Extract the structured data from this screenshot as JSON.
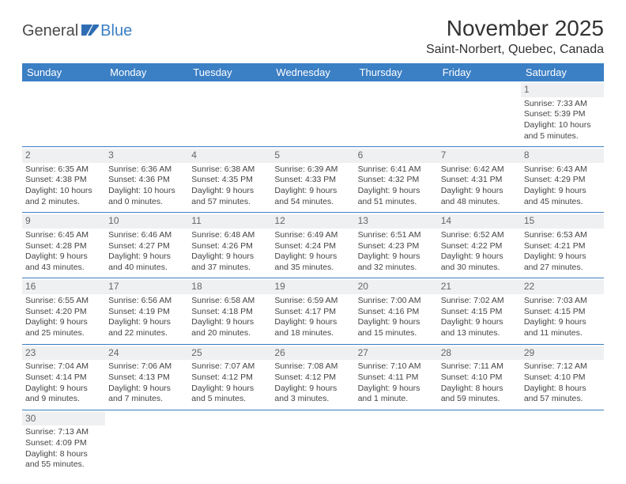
{
  "logo": {
    "text1": "General",
    "text2": "Blue"
  },
  "title": "November 2025",
  "location": "Saint-Norbert, Quebec, Canada",
  "colors": {
    "header_bg": "#3b7fc4",
    "header_text": "#ffffff",
    "daynum_bg": "#eef0f2",
    "row_border": "#3b7fc4",
    "body_text": "#444444"
  },
  "day_headers": [
    "Sunday",
    "Monday",
    "Tuesday",
    "Wednesday",
    "Thursday",
    "Friday",
    "Saturday"
  ],
  "weeks": [
    [
      {
        "n": "",
        "sunrise": "",
        "sunset": "",
        "daylight": ""
      },
      {
        "n": "",
        "sunrise": "",
        "sunset": "",
        "daylight": ""
      },
      {
        "n": "",
        "sunrise": "",
        "sunset": "",
        "daylight": ""
      },
      {
        "n": "",
        "sunrise": "",
        "sunset": "",
        "daylight": ""
      },
      {
        "n": "",
        "sunrise": "",
        "sunset": "",
        "daylight": ""
      },
      {
        "n": "",
        "sunrise": "",
        "sunset": "",
        "daylight": ""
      },
      {
        "n": "1",
        "sunrise": "Sunrise: 7:33 AM",
        "sunset": "Sunset: 5:39 PM",
        "daylight": "Daylight: 10 hours and 5 minutes."
      }
    ],
    [
      {
        "n": "2",
        "sunrise": "Sunrise: 6:35 AM",
        "sunset": "Sunset: 4:38 PM",
        "daylight": "Daylight: 10 hours and 2 minutes."
      },
      {
        "n": "3",
        "sunrise": "Sunrise: 6:36 AM",
        "sunset": "Sunset: 4:36 PM",
        "daylight": "Daylight: 10 hours and 0 minutes."
      },
      {
        "n": "4",
        "sunrise": "Sunrise: 6:38 AM",
        "sunset": "Sunset: 4:35 PM",
        "daylight": "Daylight: 9 hours and 57 minutes."
      },
      {
        "n": "5",
        "sunrise": "Sunrise: 6:39 AM",
        "sunset": "Sunset: 4:33 PM",
        "daylight": "Daylight: 9 hours and 54 minutes."
      },
      {
        "n": "6",
        "sunrise": "Sunrise: 6:41 AM",
        "sunset": "Sunset: 4:32 PM",
        "daylight": "Daylight: 9 hours and 51 minutes."
      },
      {
        "n": "7",
        "sunrise": "Sunrise: 6:42 AM",
        "sunset": "Sunset: 4:31 PM",
        "daylight": "Daylight: 9 hours and 48 minutes."
      },
      {
        "n": "8",
        "sunrise": "Sunrise: 6:43 AM",
        "sunset": "Sunset: 4:29 PM",
        "daylight": "Daylight: 9 hours and 45 minutes."
      }
    ],
    [
      {
        "n": "9",
        "sunrise": "Sunrise: 6:45 AM",
        "sunset": "Sunset: 4:28 PM",
        "daylight": "Daylight: 9 hours and 43 minutes."
      },
      {
        "n": "10",
        "sunrise": "Sunrise: 6:46 AM",
        "sunset": "Sunset: 4:27 PM",
        "daylight": "Daylight: 9 hours and 40 minutes."
      },
      {
        "n": "11",
        "sunrise": "Sunrise: 6:48 AM",
        "sunset": "Sunset: 4:26 PM",
        "daylight": "Daylight: 9 hours and 37 minutes."
      },
      {
        "n": "12",
        "sunrise": "Sunrise: 6:49 AM",
        "sunset": "Sunset: 4:24 PM",
        "daylight": "Daylight: 9 hours and 35 minutes."
      },
      {
        "n": "13",
        "sunrise": "Sunrise: 6:51 AM",
        "sunset": "Sunset: 4:23 PM",
        "daylight": "Daylight: 9 hours and 32 minutes."
      },
      {
        "n": "14",
        "sunrise": "Sunrise: 6:52 AM",
        "sunset": "Sunset: 4:22 PM",
        "daylight": "Daylight: 9 hours and 30 minutes."
      },
      {
        "n": "15",
        "sunrise": "Sunrise: 6:53 AM",
        "sunset": "Sunset: 4:21 PM",
        "daylight": "Daylight: 9 hours and 27 minutes."
      }
    ],
    [
      {
        "n": "16",
        "sunrise": "Sunrise: 6:55 AM",
        "sunset": "Sunset: 4:20 PM",
        "daylight": "Daylight: 9 hours and 25 minutes."
      },
      {
        "n": "17",
        "sunrise": "Sunrise: 6:56 AM",
        "sunset": "Sunset: 4:19 PM",
        "daylight": "Daylight: 9 hours and 22 minutes."
      },
      {
        "n": "18",
        "sunrise": "Sunrise: 6:58 AM",
        "sunset": "Sunset: 4:18 PM",
        "daylight": "Daylight: 9 hours and 20 minutes."
      },
      {
        "n": "19",
        "sunrise": "Sunrise: 6:59 AM",
        "sunset": "Sunset: 4:17 PM",
        "daylight": "Daylight: 9 hours and 18 minutes."
      },
      {
        "n": "20",
        "sunrise": "Sunrise: 7:00 AM",
        "sunset": "Sunset: 4:16 PM",
        "daylight": "Daylight: 9 hours and 15 minutes."
      },
      {
        "n": "21",
        "sunrise": "Sunrise: 7:02 AM",
        "sunset": "Sunset: 4:15 PM",
        "daylight": "Daylight: 9 hours and 13 minutes."
      },
      {
        "n": "22",
        "sunrise": "Sunrise: 7:03 AM",
        "sunset": "Sunset: 4:15 PM",
        "daylight": "Daylight: 9 hours and 11 minutes."
      }
    ],
    [
      {
        "n": "23",
        "sunrise": "Sunrise: 7:04 AM",
        "sunset": "Sunset: 4:14 PM",
        "daylight": "Daylight: 9 hours and 9 minutes."
      },
      {
        "n": "24",
        "sunrise": "Sunrise: 7:06 AM",
        "sunset": "Sunset: 4:13 PM",
        "daylight": "Daylight: 9 hours and 7 minutes."
      },
      {
        "n": "25",
        "sunrise": "Sunrise: 7:07 AM",
        "sunset": "Sunset: 4:12 PM",
        "daylight": "Daylight: 9 hours and 5 minutes."
      },
      {
        "n": "26",
        "sunrise": "Sunrise: 7:08 AM",
        "sunset": "Sunset: 4:12 PM",
        "daylight": "Daylight: 9 hours and 3 minutes."
      },
      {
        "n": "27",
        "sunrise": "Sunrise: 7:10 AM",
        "sunset": "Sunset: 4:11 PM",
        "daylight": "Daylight: 9 hours and 1 minute."
      },
      {
        "n": "28",
        "sunrise": "Sunrise: 7:11 AM",
        "sunset": "Sunset: 4:10 PM",
        "daylight": "Daylight: 8 hours and 59 minutes."
      },
      {
        "n": "29",
        "sunrise": "Sunrise: 7:12 AM",
        "sunset": "Sunset: 4:10 PM",
        "daylight": "Daylight: 8 hours and 57 minutes."
      }
    ],
    [
      {
        "n": "30",
        "sunrise": "Sunrise: 7:13 AM",
        "sunset": "Sunset: 4:09 PM",
        "daylight": "Daylight: 8 hours and 55 minutes."
      },
      {
        "n": "",
        "sunrise": "",
        "sunset": "",
        "daylight": ""
      },
      {
        "n": "",
        "sunrise": "",
        "sunset": "",
        "daylight": ""
      },
      {
        "n": "",
        "sunrise": "",
        "sunset": "",
        "daylight": ""
      },
      {
        "n": "",
        "sunrise": "",
        "sunset": "",
        "daylight": ""
      },
      {
        "n": "",
        "sunrise": "",
        "sunset": "",
        "daylight": ""
      },
      {
        "n": "",
        "sunrise": "",
        "sunset": "",
        "daylight": ""
      }
    ]
  ]
}
